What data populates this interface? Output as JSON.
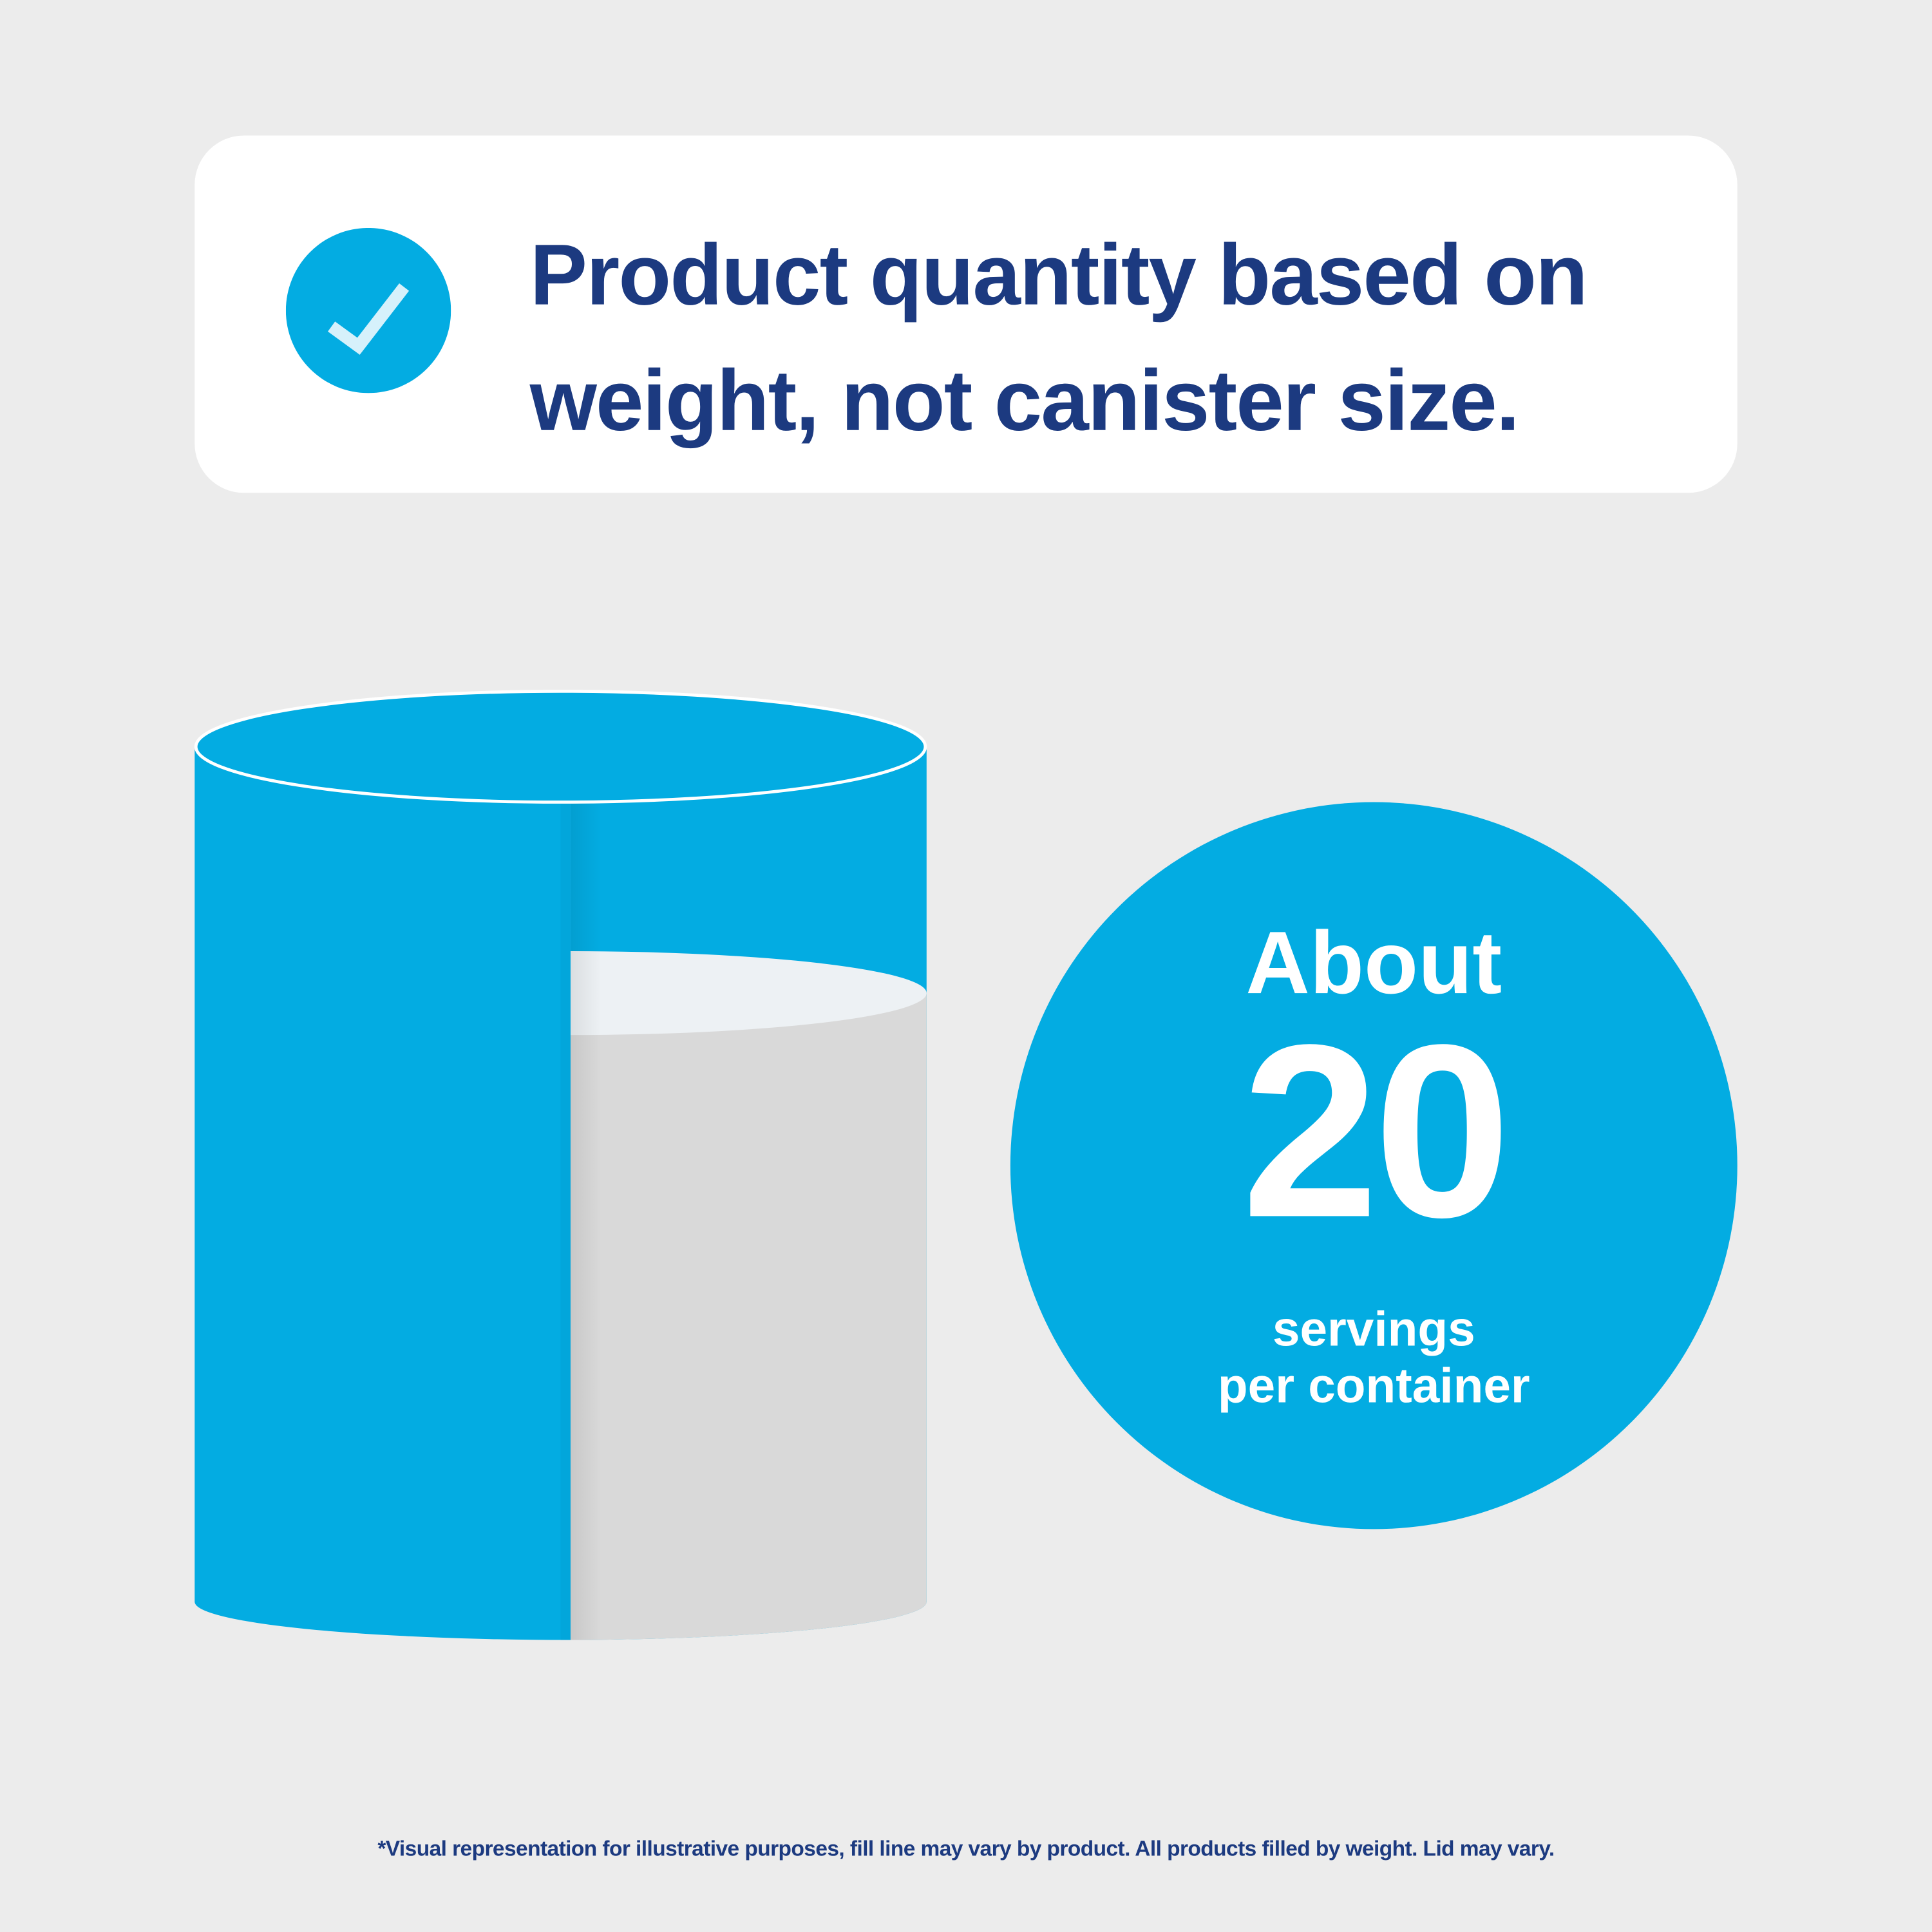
{
  "header": {
    "line1": "Product quantity based on",
    "line2": "weight, not canister size.",
    "icon": "check-circle-icon"
  },
  "badge": {
    "prefix": "About",
    "number": "20",
    "line1": "servings",
    "line2": "per container"
  },
  "footnote": "*Visual representation for illustrative purposes, fill line may vary by product. All products filled by weight. Lid may vary.",
  "colors": {
    "brand_blue": "#03ace2",
    "navy_text": "#1c3a80",
    "background": "#ececec",
    "fill_gray": "#d9d9d9"
  }
}
